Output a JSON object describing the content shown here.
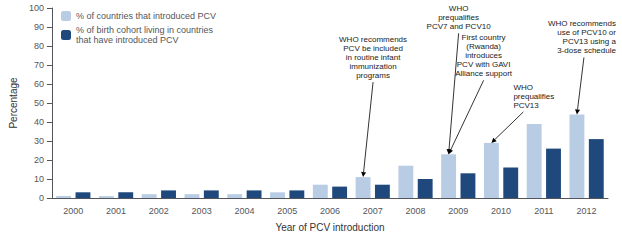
{
  "chart_data": {
    "type": "bar",
    "categories": [
      2000,
      2001,
      2002,
      2003,
      2004,
      2005,
      2006,
      2007,
      2008,
      2009,
      2010,
      2011,
      2012
    ],
    "series": [
      {
        "name": "% of countries that introduced PCV",
        "color": "#b8cce4",
        "values": [
          1,
          1,
          2,
          2,
          2,
          3,
          7,
          11,
          17,
          23,
          29,
          39,
          44
        ]
      },
      {
        "name": "% of birth cohort living in countries\nthat have introduced PCV",
        "color": "#1f497d",
        "values": [
          3,
          3,
          4,
          4,
          4,
          4,
          6,
          7,
          10,
          13,
          16,
          26,
          31
        ]
      }
    ],
    "xlabel": "Year of PCV introduction",
    "ylabel": "Percentage",
    "ylim": [
      0,
      100
    ],
    "yticks": [
      0,
      10,
      20,
      30,
      40,
      50,
      60,
      70,
      80,
      90,
      100
    ],
    "grid": false,
    "legend": "upper left",
    "annotations": [
      {
        "text": "WHO recommends\nPCV be included\nin routine infant\nimmunization\nprograms",
        "x": 2007,
        "y": 11
      },
      {
        "text": "WHO\nprequalifies\nPCV7 and PCV10",
        "x": 2009,
        "y": 23
      },
      {
        "text": "First country\n(Rwanda)\nintroduces\nPCV with GAVI\nAlliance support",
        "x": 2009,
        "y": 23
      },
      {
        "text": "WHO\nprequalifies\nPCV13",
        "x": 2010,
        "y": 29
      },
      {
        "text": "WHO recommends\nuse of PCV10 or\nPCV13 using a\n3-dose schedule",
        "x": 2012,
        "y": 44
      }
    ]
  }
}
